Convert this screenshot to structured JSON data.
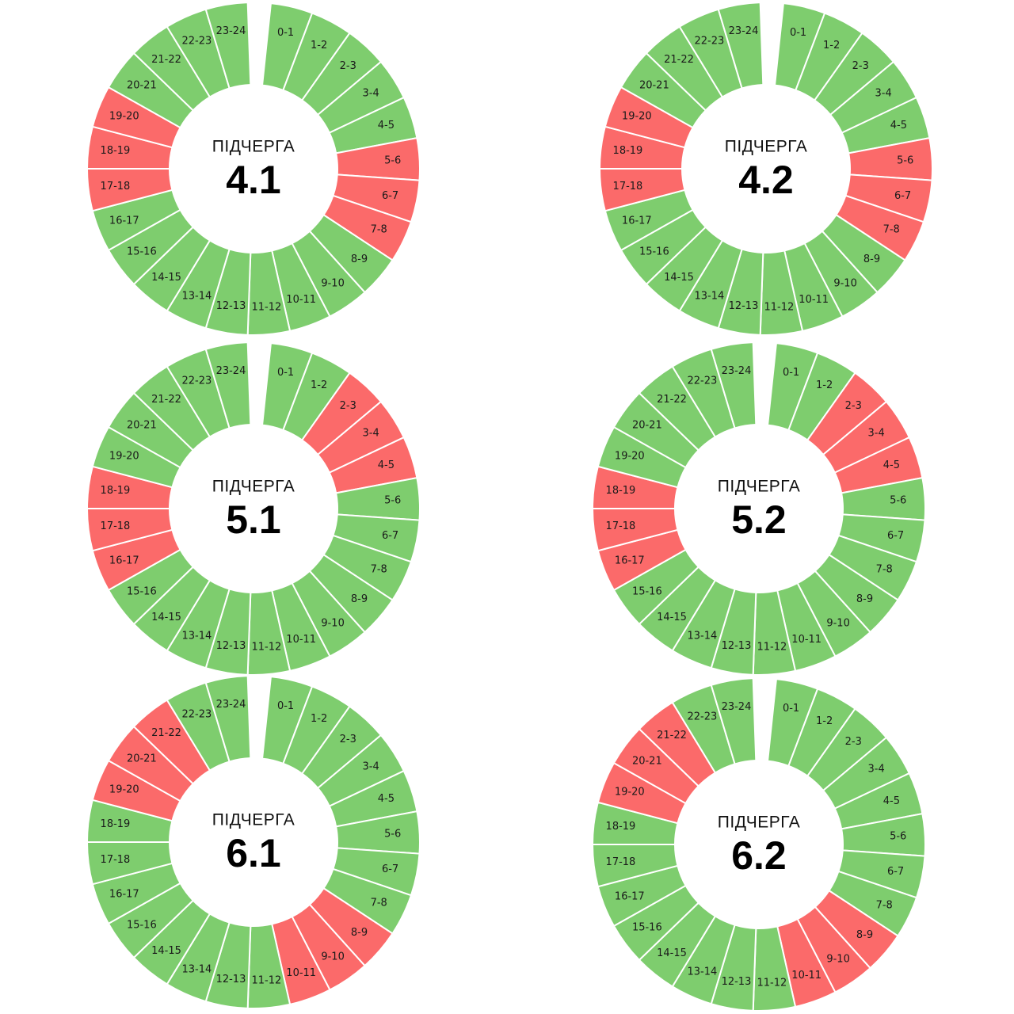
{
  "caption": "ПІДЧЕРГА",
  "colors": {
    "on": "#7ecd6e",
    "off": "#fb6a6a",
    "divider": "#ffffff"
  },
  "chart_data": [
    {
      "type": "pie",
      "title": "4.1",
      "categories": [
        "0-1",
        "1-2",
        "2-3",
        "3-4",
        "4-5",
        "5-6",
        "6-7",
        "7-8",
        "8-9",
        "9-10",
        "10-11",
        "11-12",
        "12-13",
        "13-14",
        "14-15",
        "15-16",
        "16-17",
        "17-18",
        "18-19",
        "19-20",
        "20-21",
        "21-22",
        "22-23",
        "23-24"
      ],
      "status": [
        "on",
        "on",
        "on",
        "on",
        "on",
        "off",
        "off",
        "off",
        "on",
        "on",
        "on",
        "on",
        "on",
        "on",
        "on",
        "on",
        "on",
        "off",
        "off",
        "off",
        "on",
        "on",
        "on",
        "on"
      ]
    },
    {
      "type": "pie",
      "title": "4.2",
      "categories": [
        "0-1",
        "1-2",
        "2-3",
        "3-4",
        "4-5",
        "5-6",
        "6-7",
        "7-8",
        "8-9",
        "9-10",
        "10-11",
        "11-12",
        "12-13",
        "13-14",
        "14-15",
        "15-16",
        "16-17",
        "17-18",
        "18-19",
        "19-20",
        "20-21",
        "21-22",
        "22-23",
        "23-24"
      ],
      "status": [
        "on",
        "on",
        "on",
        "on",
        "on",
        "off",
        "off",
        "off",
        "on",
        "on",
        "on",
        "on",
        "on",
        "on",
        "on",
        "on",
        "on",
        "off",
        "off",
        "off",
        "on",
        "on",
        "on",
        "on"
      ]
    },
    {
      "type": "pie",
      "title": "5.1",
      "categories": [
        "0-1",
        "1-2",
        "2-3",
        "3-4",
        "4-5",
        "5-6",
        "6-7",
        "7-8",
        "8-9",
        "9-10",
        "10-11",
        "11-12",
        "12-13",
        "13-14",
        "14-15",
        "15-16",
        "16-17",
        "17-18",
        "18-19",
        "19-20",
        "20-21",
        "21-22",
        "22-23",
        "23-24"
      ],
      "status": [
        "on",
        "on",
        "off",
        "off",
        "off",
        "on",
        "on",
        "on",
        "on",
        "on",
        "on",
        "on",
        "on",
        "on",
        "on",
        "on",
        "off",
        "off",
        "off",
        "on",
        "on",
        "on",
        "on",
        "on"
      ]
    },
    {
      "type": "pie",
      "title": "5.2",
      "categories": [
        "0-1",
        "1-2",
        "2-3",
        "3-4",
        "4-5",
        "5-6",
        "6-7",
        "7-8",
        "8-9",
        "9-10",
        "10-11",
        "11-12",
        "12-13",
        "13-14",
        "14-15",
        "15-16",
        "16-17",
        "17-18",
        "18-19",
        "19-20",
        "20-21",
        "21-22",
        "22-23",
        "23-24"
      ],
      "status": [
        "on",
        "on",
        "off",
        "off",
        "off",
        "on",
        "on",
        "on",
        "on",
        "on",
        "on",
        "on",
        "on",
        "on",
        "on",
        "on",
        "off",
        "off",
        "off",
        "on",
        "on",
        "on",
        "on",
        "on"
      ]
    },
    {
      "type": "pie",
      "title": "6.1",
      "categories": [
        "0-1",
        "1-2",
        "2-3",
        "3-4",
        "4-5",
        "5-6",
        "6-7",
        "7-8",
        "8-9",
        "9-10",
        "10-11",
        "11-12",
        "12-13",
        "13-14",
        "14-15",
        "15-16",
        "16-17",
        "17-18",
        "18-19",
        "19-20",
        "20-21",
        "21-22",
        "22-23",
        "23-24"
      ],
      "status": [
        "on",
        "on",
        "on",
        "on",
        "on",
        "on",
        "on",
        "on",
        "off",
        "off",
        "off",
        "on",
        "on",
        "on",
        "on",
        "on",
        "on",
        "on",
        "on",
        "off",
        "off",
        "off",
        "on",
        "on"
      ]
    },
    {
      "type": "pie",
      "title": "6.2",
      "categories": [
        "0-1",
        "1-2",
        "2-3",
        "3-4",
        "4-5",
        "5-6",
        "6-7",
        "7-8",
        "8-9",
        "9-10",
        "10-11",
        "11-12",
        "12-13",
        "13-14",
        "14-15",
        "15-16",
        "16-17",
        "17-18",
        "18-19",
        "19-20",
        "20-21",
        "21-22",
        "22-23",
        "23-24"
      ],
      "status": [
        "on",
        "on",
        "on",
        "on",
        "on",
        "on",
        "on",
        "on",
        "off",
        "off",
        "off",
        "on",
        "on",
        "on",
        "on",
        "on",
        "on",
        "on",
        "on",
        "off",
        "off",
        "off",
        "on",
        "on"
      ]
    }
  ]
}
